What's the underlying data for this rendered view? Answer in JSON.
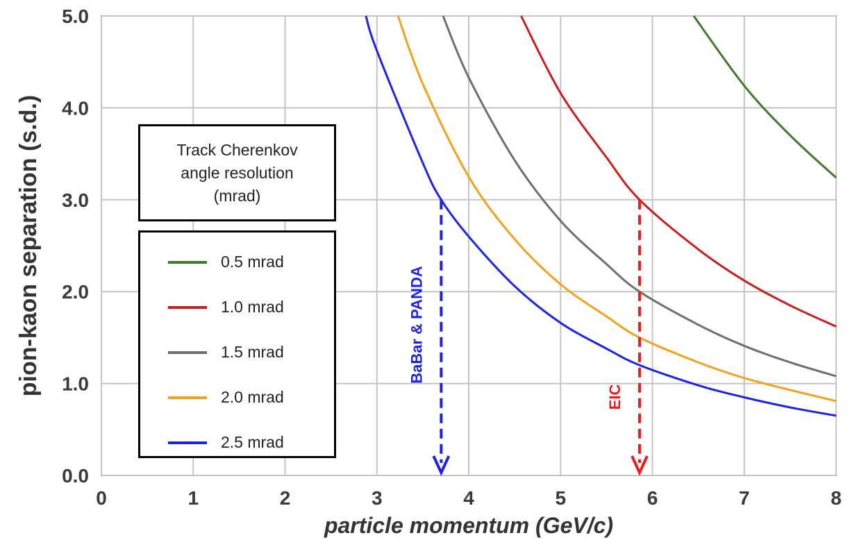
{
  "chart_data": {
    "type": "line",
    "xlabel": "particle momentum (GeV/c)",
    "ylabel": "pion-kaon separation (s.d.)",
    "xlim": [
      0,
      8
    ],
    "ylim": [
      0,
      5
    ],
    "x_ticks": [
      "0",
      "1",
      "2",
      "3",
      "4",
      "5",
      "6",
      "7",
      "8"
    ],
    "y_ticks": [
      "0.0",
      "1.0",
      "2.0",
      "3.0",
      "4.0",
      "5.0"
    ],
    "grid": true,
    "legend_title": "Track Cherenkov\nangle resolution\n(mrad)",
    "legend_position": "left",
    "series": [
      {
        "name": "0.5 mrad",
        "color": "#3f7a2a",
        "points": [
          [
            6.45,
            5.0
          ],
          [
            7.0,
            4.24
          ],
          [
            7.5,
            3.7
          ],
          [
            8.0,
            3.24
          ]
        ]
      },
      {
        "name": "1.0 mrad",
        "color": "#c81e1e",
        "points": [
          [
            4.57,
            5.0
          ],
          [
            5.0,
            4.16
          ],
          [
            5.5,
            3.46
          ],
          [
            5.86,
            3.0
          ],
          [
            6.5,
            2.46
          ],
          [
            7.0,
            2.12
          ],
          [
            7.5,
            1.85
          ],
          [
            8.0,
            1.62
          ]
        ]
      },
      {
        "name": "1.5 mrad",
        "color": "#6e6e6e",
        "points": [
          [
            3.72,
            5.0
          ],
          [
            4.0,
            4.33
          ],
          [
            4.5,
            3.43
          ],
          [
            5.0,
            2.77
          ],
          [
            5.5,
            2.3
          ],
          [
            5.86,
            2.0
          ],
          [
            6.5,
            1.64
          ],
          [
            7.0,
            1.41
          ],
          [
            7.5,
            1.23
          ],
          [
            8.0,
            1.08
          ]
        ]
      },
      {
        "name": "2.0 mrad",
        "color": "#f5a01a",
        "points": [
          [
            3.23,
            5.0
          ],
          [
            3.5,
            4.26
          ],
          [
            4.0,
            3.25
          ],
          [
            4.5,
            2.57
          ],
          [
            5.0,
            2.08
          ],
          [
            5.5,
            1.73
          ],
          [
            5.86,
            1.5
          ],
          [
            6.5,
            1.23
          ],
          [
            7.0,
            1.06
          ],
          [
            7.5,
            0.93
          ],
          [
            8.0,
            0.81
          ]
        ]
      },
      {
        "name": "2.5 mrad",
        "color": "#1c22e6",
        "points": [
          [
            2.88,
            5.0
          ],
          [
            3.0,
            4.62
          ],
          [
            3.5,
            3.4
          ],
          [
            3.7,
            3.0
          ],
          [
            4.0,
            2.6
          ],
          [
            4.5,
            2.06
          ],
          [
            5.0,
            1.66
          ],
          [
            5.5,
            1.38
          ],
          [
            5.86,
            1.2
          ],
          [
            6.5,
            0.98
          ],
          [
            7.0,
            0.85
          ],
          [
            7.5,
            0.74
          ],
          [
            8.0,
            0.65
          ]
        ]
      }
    ],
    "annotations": [
      {
        "text": "BaBar & PANDA",
        "x": 3.7,
        "y_from": 3.0,
        "y_to": 0.0,
        "color": "#1c22e6",
        "style": "dashed-arrow"
      },
      {
        "text": "EIC",
        "x": 5.86,
        "y_from": 3.0,
        "y_to": 0.0,
        "color": "#ee1c1c",
        "style": "dashed-arrow"
      }
    ]
  }
}
